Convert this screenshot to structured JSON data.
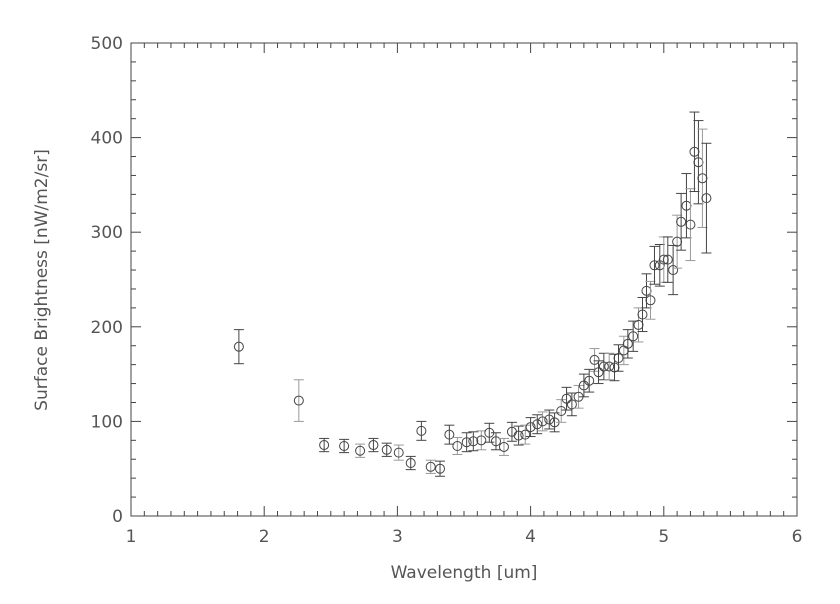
{
  "chart_data": {
    "type": "scatter",
    "title": "",
    "xlabel": "Wavelength [um]",
    "ylabel": "Surface Brightness [nW/m2/sr]",
    "xlim": [
      1,
      6
    ],
    "ylim": [
      0,
      500
    ],
    "xticks": [
      "1",
      "2",
      "3",
      "4",
      "5",
      "6"
    ],
    "yticks": [
      "0",
      "100",
      "200",
      "300",
      "400",
      "500"
    ],
    "grid": false,
    "marker": "open-circle",
    "error_bars": true,
    "color": "#444444",
    "series": [
      {
        "x": [
          1.81,
          2.26,
          2.45,
          2.6,
          2.72,
          2.82,
          2.92,
          3.01,
          3.1,
          3.18,
          3.25,
          3.32,
          3.39,
          3.45,
          3.52,
          3.57,
          3.63,
          3.69,
          3.74,
          3.8,
          3.86,
          3.91,
          3.96,
          4.0,
          4.05,
          4.09,
          4.14,
          4.18,
          4.23,
          4.27,
          4.31,
          4.36,
          4.4,
          4.44,
          4.48,
          4.51,
          4.55,
          4.59,
          4.63,
          4.66,
          4.7,
          4.73,
          4.77,
          4.81,
          4.84,
          4.87,
          4.9,
          4.93,
          4.97,
          5.0,
          5.03,
          5.07,
          5.1,
          5.13,
          5.17,
          5.2,
          5.23,
          5.26,
          5.29,
          5.32
        ],
        "y": [
          179,
          122,
          75,
          74,
          69,
          75,
          70,
          67,
          56,
          90,
          52,
          50,
          86,
          74,
          78,
          79,
          80,
          88,
          79,
          73,
          89,
          85,
          86,
          94,
          97,
          100,
          102,
          99,
          111,
          124,
          118,
          126,
          138,
          143,
          165,
          152,
          158,
          158,
          157,
          167,
          175,
          182,
          190,
          202,
          213,
          238,
          228,
          265,
          265,
          271,
          271,
          260,
          290,
          311,
          328,
          308,
          385,
          374,
          357,
          336
        ],
        "yerr": [
          18,
          22,
          7,
          7,
          7,
          7,
          7,
          8,
          7,
          10,
          7,
          8,
          10,
          9,
          10,
          10,
          10,
          10,
          9,
          9,
          10,
          10,
          10,
          10,
          10,
          10,
          10,
          10,
          12,
          12,
          12,
          12,
          12,
          12,
          12,
          12,
          14,
          14,
          14,
          14,
          15,
          15,
          16,
          18,
          18,
          18,
          20,
          20,
          22,
          24,
          24,
          26,
          28,
          30,
          34,
          38,
          42,
          44,
          52,
          58
        ]
      }
    ]
  }
}
